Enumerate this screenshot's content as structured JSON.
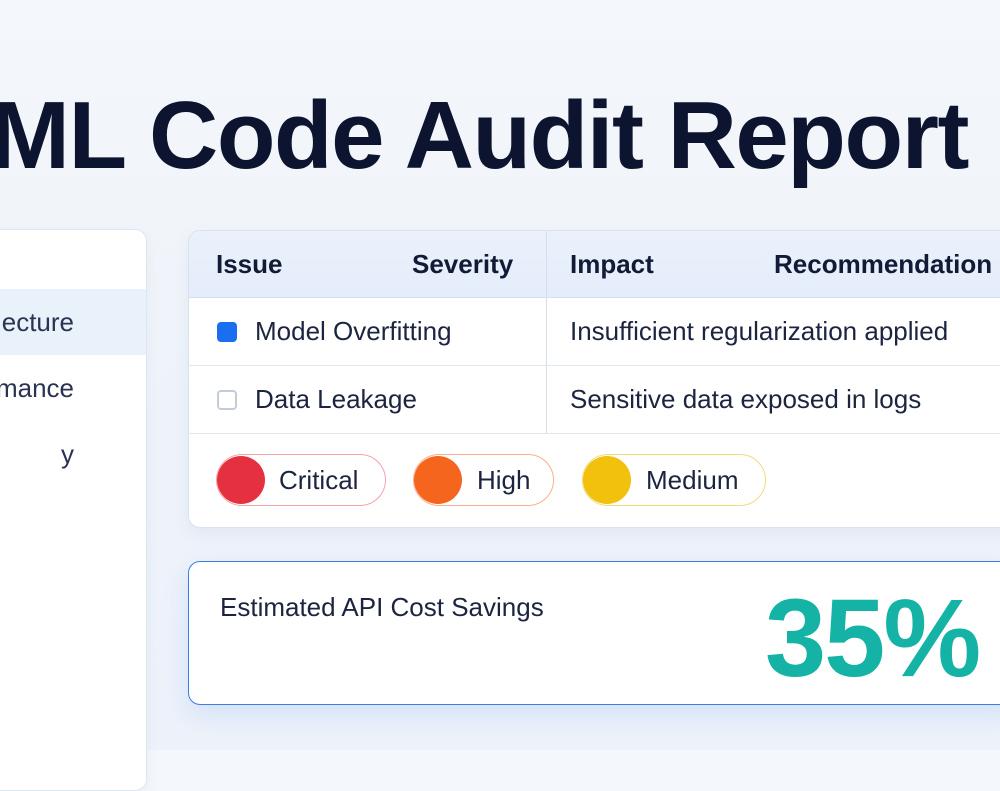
{
  "page": {
    "title": "ML Code Audit Report"
  },
  "sidebar": {
    "items": [
      {
        "label": "ecture",
        "active": true
      },
      {
        "label": "mance",
        "active": false
      },
      {
        "label": "y",
        "active": false
      }
    ]
  },
  "issues_table": {
    "columns": [
      "Issue",
      "Severity",
      "Impact",
      "Recommendation"
    ],
    "rows": [
      {
        "issue": "Model Overfitting",
        "impact": "Insufficient regularization applied",
        "checked": true
      },
      {
        "issue": "Data Leakage",
        "impact": "Sensitive data exposed in logs",
        "checked": false
      }
    ]
  },
  "severity_legend": [
    {
      "label": "Critical",
      "color": "#e5313f"
    },
    {
      "label": "High",
      "color": "#f5651e"
    },
    {
      "label": "Medium",
      "color": "#f2c10d"
    }
  ],
  "savings": {
    "label": "Estimated API Cost Savings",
    "value": "35%"
  },
  "colors": {
    "accent": "#1a6ff0",
    "savings": "#14b3a5",
    "critical": "#e5313f",
    "high": "#f5651e",
    "medium": "#f2c10d"
  }
}
